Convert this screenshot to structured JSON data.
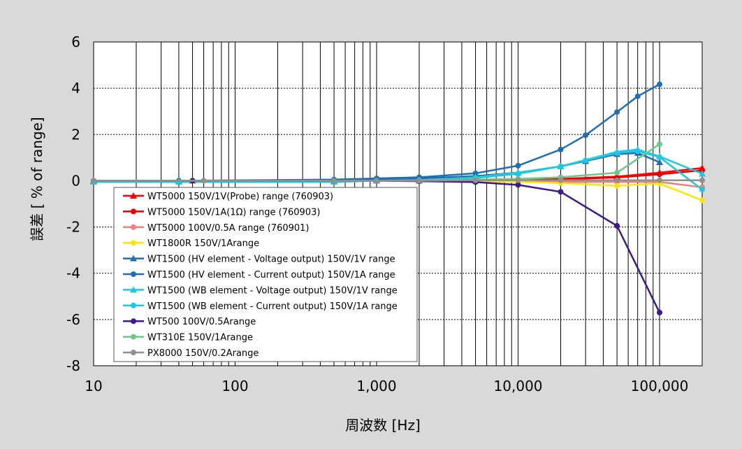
{
  "chart_data": {
    "type": "line",
    "xscale": "log",
    "xlim": [
      10,
      200000
    ],
    "ylim": [
      -8,
      6
    ],
    "xlabel": "周波数 [Hz]",
    "ylabel": "誤差 [ % of range]",
    "xticks": [
      {
        "value": 10,
        "label": "10"
      },
      {
        "value": 100,
        "label": "100"
      },
      {
        "value": 1000,
        "label": "1,000"
      },
      {
        "value": 10000,
        "label": "10,000"
      },
      {
        "value": 100000,
        "label": "100,000"
      }
    ],
    "yticks": [
      {
        "value": 6,
        "label": "6"
      },
      {
        "value": 4,
        "label": "4"
      },
      {
        "value": 2,
        "label": "2"
      },
      {
        "value": 0,
        "label": "0"
      },
      {
        "value": -2,
        "label": "-2"
      },
      {
        "value": -4,
        "label": "-4"
      },
      {
        "value": -6,
        "label": "-6"
      },
      {
        "value": -8,
        "label": "-8"
      }
    ],
    "grid": true,
    "legend_position": "lower-left",
    "series": [
      {
        "name": "WT5000 150V/1V(Probe) range (760903)",
        "color": "#ff0000",
        "marker": "triangle",
        "x": [
          10,
          50,
          500,
          1000,
          2000,
          5000,
          10000,
          20000,
          50000,
          100000,
          200000
        ],
        "y": [
          0,
          0,
          0,
          0,
          0,
          0.01,
          0.03,
          0.08,
          0.18,
          0.35,
          0.55
        ]
      },
      {
        "name": "WT5000 150V/1A(1Ω) range (760903)",
        "color": "#e60000",
        "marker": "circle",
        "x": [
          10,
          50,
          500,
          1000,
          2000,
          5000,
          10000,
          20000,
          50000,
          100000,
          200000
        ],
        "y": [
          0,
          0,
          0,
          0,
          0,
          0,
          0.02,
          0.06,
          0.14,
          0.28,
          0.45
        ]
      },
      {
        "name": "WT5000 100V/0.5A range (760901)",
        "color": "#f08080",
        "marker": "circle",
        "x": [
          10,
          50,
          500,
          1000,
          2000,
          5000,
          10000,
          20000,
          50000,
          100000,
          200000
        ],
        "y": [
          0,
          0,
          0,
          0,
          0,
          -0.01,
          -0.02,
          -0.05,
          -0.05,
          -0.05,
          -0.28
        ]
      },
      {
        "name": "WT1800R 150V/1Arange",
        "color": "#ffe600",
        "marker": "circle",
        "x": [
          10,
          50,
          500,
          1000,
          2000,
          5000,
          10000,
          20000,
          50000,
          100000,
          200000
        ],
        "y": [
          0,
          0,
          0,
          0,
          0,
          -0.02,
          -0.05,
          -0.1,
          -0.22,
          -0.12,
          -0.85
        ]
      },
      {
        "name": "WT1500 (HV element - Voltage output) 150V/1V range",
        "color": "#1f6fb5",
        "marker": "triangle",
        "x": [
          10,
          40,
          500,
          1000,
          2000,
          5000,
          10000,
          20000,
          30000,
          50000,
          70000,
          100000
        ],
        "y": [
          0,
          0,
          0.02,
          0.05,
          0.1,
          0.2,
          0.35,
          0.62,
          0.85,
          1.15,
          1.2,
          0.8
        ]
      },
      {
        "name": "WT1500 (HV element - Current output) 150V/1A range",
        "color": "#1f6fb5",
        "marker": "circle",
        "x": [
          10,
          40,
          500,
          1000,
          2000,
          5000,
          10000,
          20000,
          30000,
          50000,
          70000,
          100000
        ],
        "y": [
          0,
          0,
          0.05,
          0.1,
          0.15,
          0.32,
          0.65,
          1.35,
          1.97,
          2.97,
          3.65,
          4.17
        ]
      },
      {
        "name": "WT1500 (WB element - Voltage output) 150V/1V range",
        "color": "#1ec8e0",
        "marker": "triangle",
        "x": [
          10,
          40,
          500,
          1000,
          2000,
          5000,
          10000,
          20000,
          30000,
          50000,
          70000,
          100000,
          200000
        ],
        "y": [
          -0.05,
          -0.05,
          -0.05,
          0,
          0,
          0.15,
          0.35,
          0.62,
          0.9,
          1.25,
          1.35,
          1.05,
          0.3
        ]
      },
      {
        "name": "WT1500 (WB element - Current output) 150V/1A range",
        "color": "#1ec8e0",
        "marker": "circle",
        "x": [
          10,
          40,
          500,
          1000,
          2000,
          5000,
          10000,
          20000,
          30000,
          50000,
          70000,
          100000,
          200000
        ],
        "y": [
          -0.05,
          -0.05,
          -0.05,
          0,
          0.02,
          0.12,
          0.3,
          0.62,
          0.88,
          1.2,
          1.28,
          1.02,
          -0.38
        ]
      },
      {
        "name": "WT500 100V/0.5Arange",
        "color": "#3d1a8a",
        "marker": "circle",
        "x": [
          10,
          50,
          500,
          1000,
          2000,
          5000,
          10000,
          20000,
          50000,
          100000
        ],
        "y": [
          0,
          0,
          0,
          0,
          -0.02,
          -0.06,
          -0.18,
          -0.48,
          -1.95,
          -5.7
        ]
      },
      {
        "name": "WT310E 150V/1Arange",
        "color": "#6cc88a",
        "marker": "circle",
        "x": [
          10,
          60,
          500,
          1000,
          2000,
          5000,
          10000,
          20000,
          50000,
          100000
        ],
        "y": [
          0,
          0,
          0,
          0,
          0.02,
          0.05,
          0.08,
          0.15,
          0.35,
          1.58
        ]
      },
      {
        "name": "PX8000 150V/0.2Arange",
        "color": "#909090",
        "marker": "circle",
        "x": [
          10,
          60,
          500,
          1000,
          2000,
          5000,
          10000,
          20000,
          50000,
          100000,
          200000
        ],
        "y": [
          0,
          0,
          0,
          0,
          0,
          0.02,
          0.02,
          0.02,
          0.02,
          0.02,
          0.02
        ]
      }
    ]
  }
}
